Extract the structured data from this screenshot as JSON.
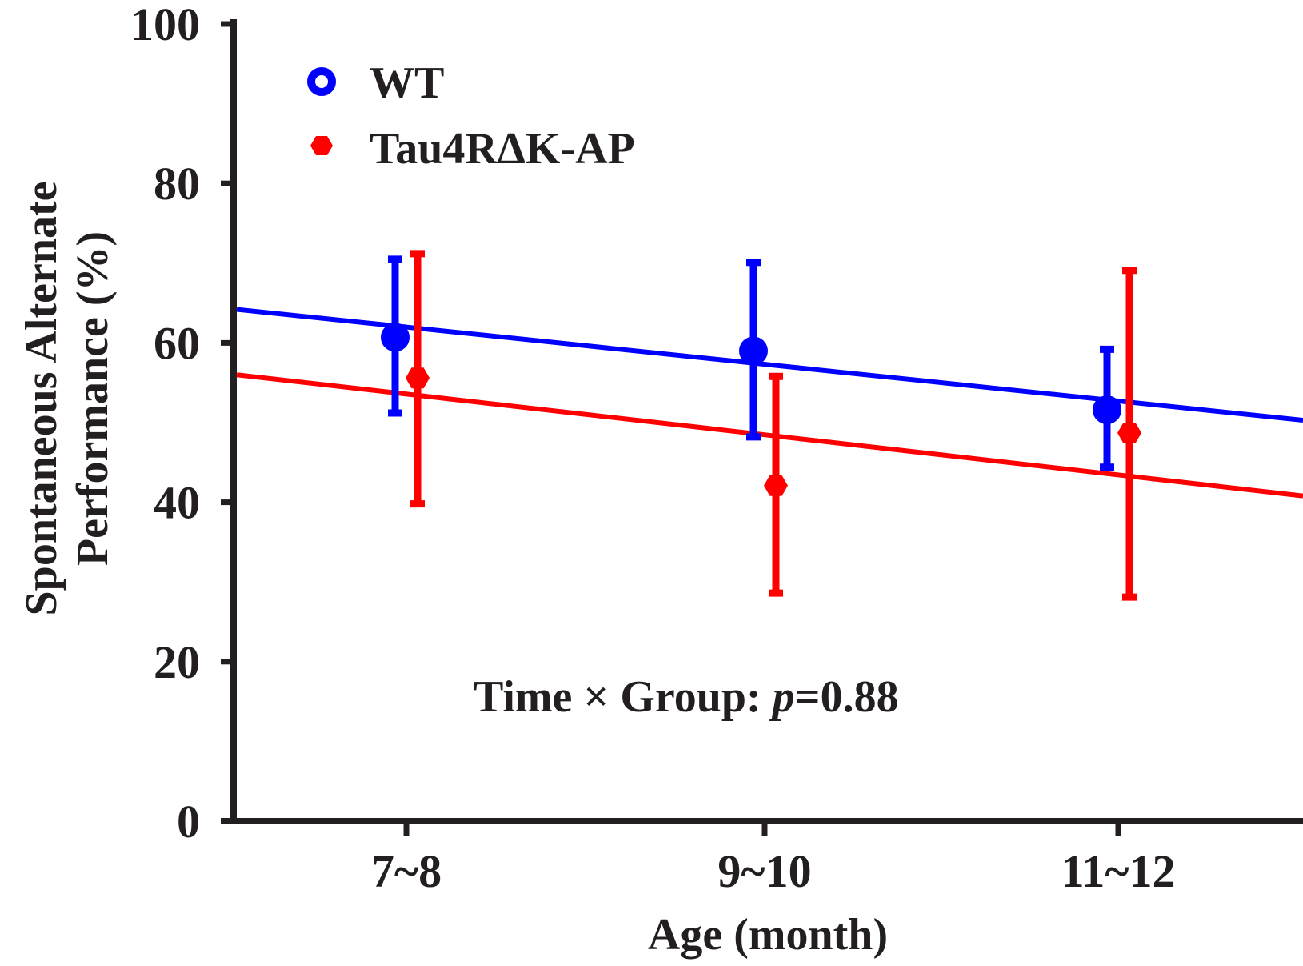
{
  "chart_data": {
    "type": "line",
    "categories": [
      "7~8",
      "9~10",
      "11~12"
    ],
    "xlabel": "Age (month)",
    "ylabel": [
      "Spontaneous Alternate",
      "Performance (%)"
    ],
    "ylim": [
      0,
      100
    ],
    "yticks": [
      0,
      20,
      40,
      60,
      80,
      100
    ],
    "grid": false,
    "legend_position": "top-left",
    "series": [
      {
        "name": "WT",
        "color": "#0000ff",
        "marker": "circle",
        "means": [
          60.7,
          59.0,
          51.6
        ],
        "err_low": [
          51.2,
          48.2,
          44.4
        ],
        "err_high": [
          70.5,
          70.1,
          59.2
        ],
        "fit_line": {
          "start_y": 64.2,
          "end_y": 50.3
        }
      },
      {
        "name": "Tau4RΔK-AP",
        "color": "#ff0000",
        "marker": "hexagon",
        "means": [
          55.6,
          42.1,
          48.7
        ],
        "err_low": [
          39.8,
          28.6,
          28.1
        ],
        "err_high": [
          71.2,
          55.8,
          69.1
        ],
        "fit_line": {
          "start_y": 56.0,
          "end_y": 40.8
        }
      }
    ],
    "annotation": {
      "prefix": "Time × Group: ",
      "p_symbol": "p",
      "value": "=0.88"
    }
  }
}
